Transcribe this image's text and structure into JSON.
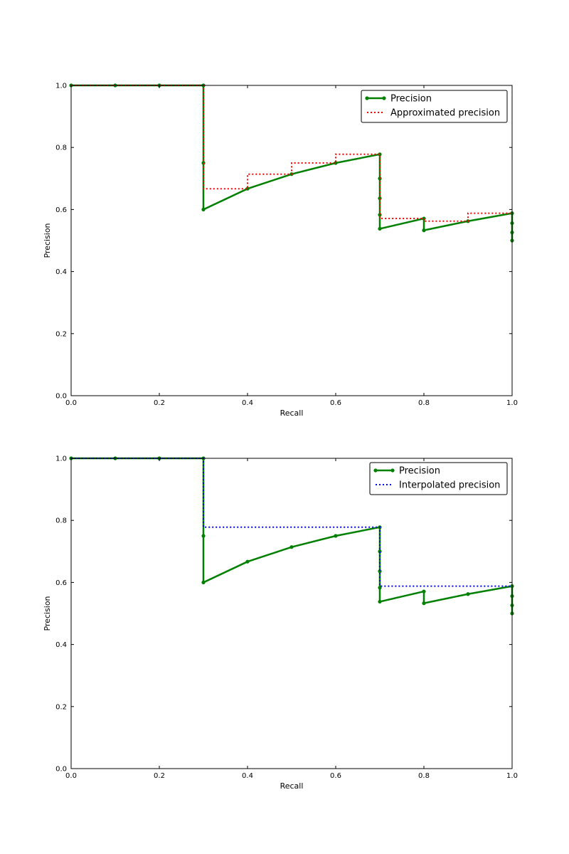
{
  "chart_data": [
    {
      "type": "line",
      "xlabel": "Recall",
      "ylabel": "Precision",
      "xlim": [
        0.0,
        1.0
      ],
      "ylim": [
        0.0,
        1.0
      ],
      "xticks": [
        "0.0",
        "0.2",
        "0.4",
        "0.6",
        "0.8",
        "1.0"
      ],
      "yticks": [
        "0.0",
        "0.2",
        "0.4",
        "0.6",
        "0.8",
        "1.0"
      ],
      "grid": false,
      "legend_position": "top-right",
      "series": [
        {
          "name": "Precision",
          "color": "#008000",
          "style": "solid",
          "markers": true,
          "x": [
            0.0,
            0.1,
            0.2,
            0.3,
            0.3,
            0.3,
            0.4,
            0.5,
            0.6,
            0.7,
            0.7,
            0.7,
            0.7,
            0.7,
            0.8,
            0.8,
            0.9,
            1.0,
            1.0,
            1.0,
            1.0
          ],
          "y": [
            1.0,
            1.0,
            1.0,
            1.0,
            0.75,
            0.6,
            0.667,
            0.714,
            0.75,
            0.778,
            0.7,
            0.636,
            0.583,
            0.538,
            0.571,
            0.533,
            0.5625,
            0.588,
            0.556,
            0.526,
            0.5
          ]
        },
        {
          "name": "Approximated precision",
          "color": "#ff0000",
          "style": "dotted",
          "markers": false,
          "x": [
            0.0,
            0.3,
            0.3,
            0.4,
            0.4,
            0.5,
            0.5,
            0.6,
            0.6,
            0.7,
            0.7,
            0.8,
            0.8,
            0.9,
            0.9,
            1.0
          ],
          "y": [
            1.0,
            1.0,
            0.667,
            0.667,
            0.714,
            0.714,
            0.75,
            0.75,
            0.778,
            0.778,
            0.571,
            0.571,
            0.5625,
            0.5625,
            0.588,
            0.588
          ]
        }
      ]
    },
    {
      "type": "line",
      "xlabel": "Recall",
      "ylabel": "Precision",
      "xlim": [
        0.0,
        1.0
      ],
      "ylim": [
        0.0,
        1.0
      ],
      "xticks": [
        "0.0",
        "0.2",
        "0.4",
        "0.6",
        "0.8",
        "1.0"
      ],
      "yticks": [
        "0.0",
        "0.2",
        "0.4",
        "0.6",
        "0.8",
        "1.0"
      ],
      "grid": false,
      "legend_position": "top-right",
      "series": [
        {
          "name": "Precision",
          "color": "#008000",
          "style": "solid",
          "markers": true,
          "x": [
            0.0,
            0.1,
            0.2,
            0.3,
            0.3,
            0.3,
            0.4,
            0.5,
            0.6,
            0.7,
            0.7,
            0.7,
            0.7,
            0.7,
            0.8,
            0.8,
            0.9,
            1.0,
            1.0,
            1.0,
            1.0
          ],
          "y": [
            1.0,
            1.0,
            1.0,
            1.0,
            0.75,
            0.6,
            0.667,
            0.714,
            0.75,
            0.778,
            0.7,
            0.636,
            0.583,
            0.538,
            0.571,
            0.533,
            0.5625,
            0.588,
            0.556,
            0.526,
            0.5
          ]
        },
        {
          "name": "Interpolated precision",
          "color": "#0000ff",
          "style": "dotted",
          "markers": false,
          "x": [
            0.0,
            0.3,
            0.3,
            0.7,
            0.7,
            1.0
          ],
          "y": [
            1.0,
            1.0,
            0.778,
            0.778,
            0.588,
            0.588
          ]
        }
      ]
    }
  ]
}
